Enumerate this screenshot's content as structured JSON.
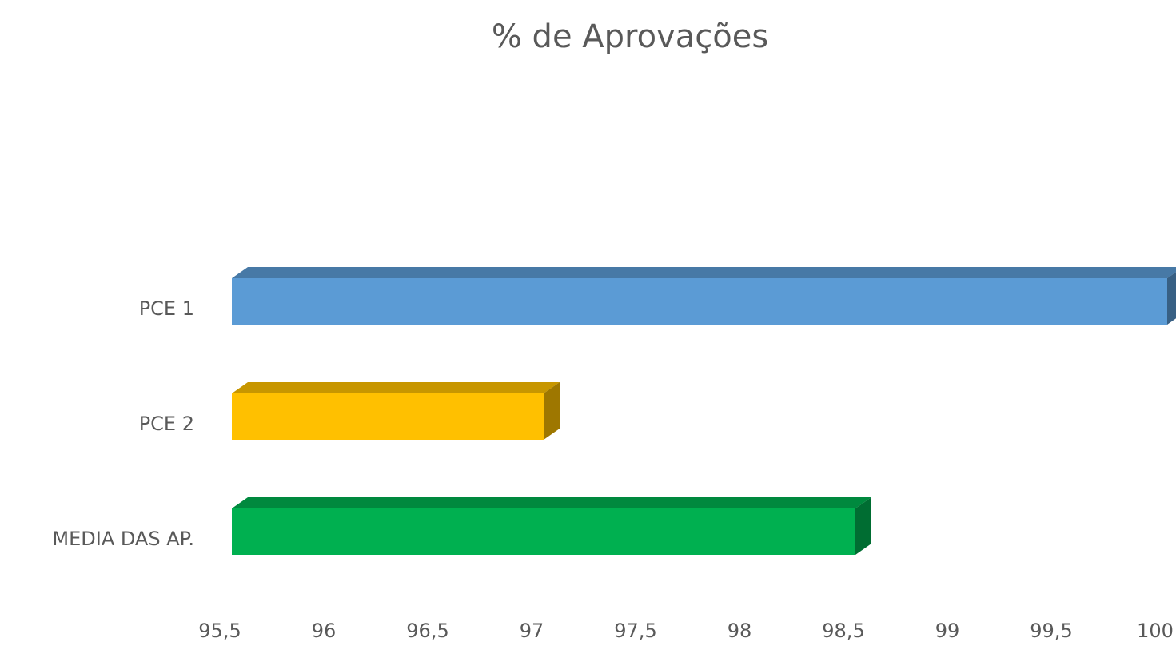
{
  "chart_data": {
    "type": "bar",
    "orientation": "horizontal",
    "title": "% de Aprovações",
    "categories": [
      "PCE 1",
      "PCE 2",
      "MEDIA DAS AP."
    ],
    "series": [
      {
        "name": null,
        "values": [
          100,
          97,
          98.5
        ],
        "colors": [
          "#5b9bd5",
          "#ffc000",
          "#00b050"
        ]
      }
    ],
    "xlim": [
      95.5,
      100
    ],
    "xticks": [
      {
        "value": 95.5,
        "label": "95,5"
      },
      96,
      {
        "value": 96.5,
        "label": "96,5"
      },
      97,
      {
        "value": 97.5,
        "label": "97,5"
      },
      98,
      {
        "value": 98.5,
        "label": "98,5"
      },
      99,
      {
        "value": 99.5,
        "label": "99,5"
      },
      100
    ],
    "grid": false
  }
}
